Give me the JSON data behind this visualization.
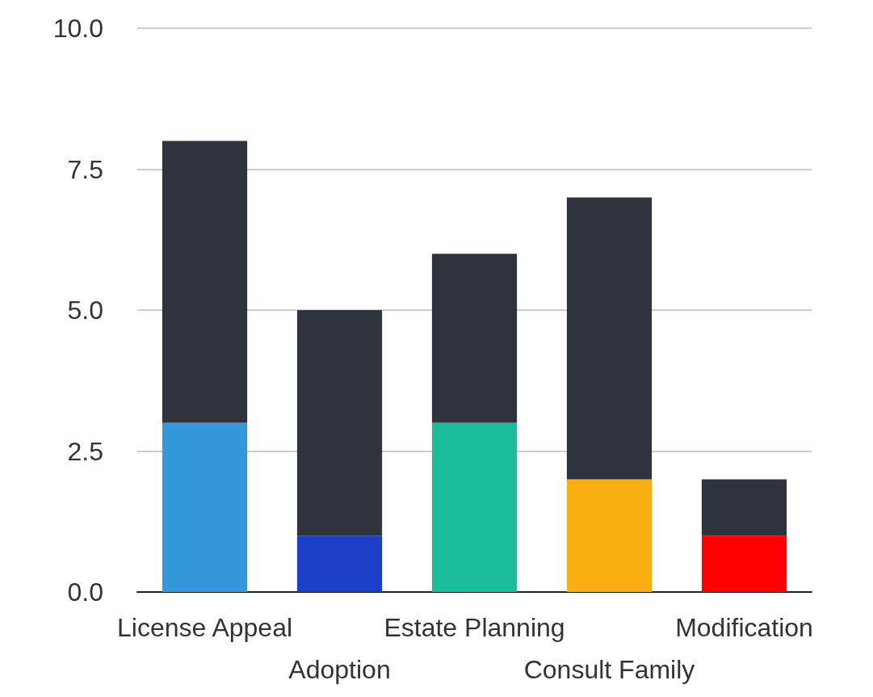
{
  "chart_data": {
    "type": "bar",
    "stacked": true,
    "categories": [
      "License Appeal",
      "Adoption",
      "Estate Planning",
      "Consult Family",
      "Modification"
    ],
    "series": [
      {
        "colors": [
          "#3498db",
          "#1b3fc6",
          "#1abc9c",
          "#f9ae12",
          "#ff0000"
        ],
        "values": [
          3,
          1,
          3,
          2,
          1
        ]
      },
      {
        "color": "#2e333d",
        "values": [
          5,
          4,
          3,
          5,
          1
        ]
      }
    ],
    "ylim": [
      0,
      10
    ],
    "yticks": [
      {
        "value": 0,
        "label": "0.0"
      },
      2.5,
      {
        "value": 5,
        "label": "5.0"
      },
      7.5,
      {
        "value": 10,
        "label": "10.0"
      }
    ],
    "grid": "y"
  }
}
